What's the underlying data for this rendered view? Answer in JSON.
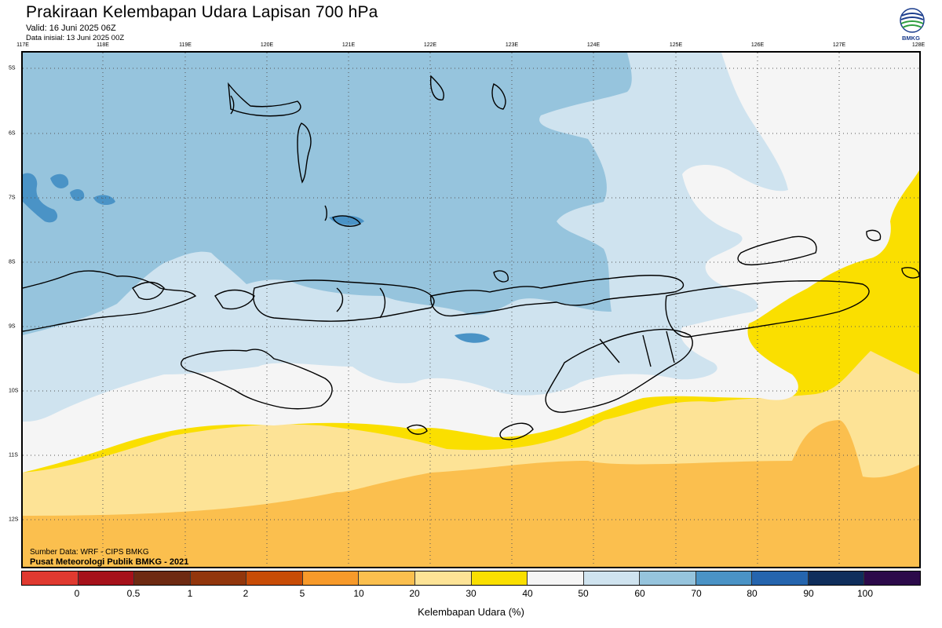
{
  "header": {
    "title": "Prakiraan Kelembapan Udara Lapisan 700 hPa",
    "valid": "Valid: 16 Juni 2025 06Z",
    "initial": "Data inisial: 13 Juni 2025 00Z"
  },
  "logo": {
    "text": "BMKG",
    "icon": "bmkg-logo-icon"
  },
  "axes": {
    "longitudes": [
      "117E",
      "118E",
      "119E",
      "120E",
      "121E",
      "122E",
      "123E",
      "124E",
      "125E",
      "126E",
      "127E",
      "128E"
    ],
    "latitudes": [
      "5S",
      "6S",
      "7S",
      "8S",
      "9S",
      "10S",
      "11S",
      "12S"
    ]
  },
  "footer": {
    "source": "Sumber Data: WRF - CIPS BMKG",
    "publisher": "Pusat Meteorologi Publik BMKG - 2021"
  },
  "colorbar": {
    "label": "Kelembapan Udara (%)",
    "ticks": [
      "0",
      "0.5",
      "1",
      "2",
      "5",
      "10",
      "20",
      "30",
      "40",
      "50",
      "60",
      "70",
      "80",
      "90",
      "100"
    ],
    "colors": [
      "#e03a30",
      "#a6111a",
      "#6e2a12",
      "#92360c",
      "#c84c06",
      "#f79a2a",
      "#fbbf4e",
      "#fde396",
      "#fadf00",
      "#f5f5f5",
      "#cfe3ef",
      "#96c4dd",
      "#4a93c6",
      "#2565ae",
      "#0f2e5c",
      "#2c0a4a"
    ]
  },
  "map_colors": {
    "orange": "#fbbf4e",
    "light_orange": "#fde396",
    "yellow": "#fadf00",
    "white": "#f5f5f5",
    "pale_blue": "#cfe3ef",
    "light_blue": "#96c4dd",
    "mid_blue": "#4a93c6"
  }
}
